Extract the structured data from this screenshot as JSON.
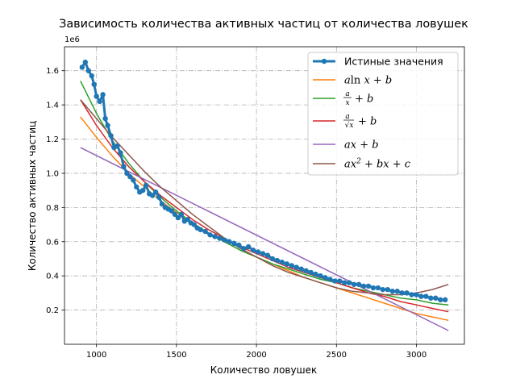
{
  "chart_data": {
    "type": "line",
    "title": "Зависимость количества активных частиц от количества ловушек",
    "xlabel": "Количество ловушек",
    "ylabel": "Количество активных частиц",
    "y_offset_label": "1e6",
    "xlim": [
      800,
      3300
    ],
    "ylim": [
      0.0,
      1.74
    ],
    "y_scale_multiplier": 1000000,
    "x_ticks": [
      1000,
      1500,
      2000,
      2500,
      3000
    ],
    "y_ticks": [
      0.2,
      0.4,
      0.6,
      0.8,
      1.0,
      1.2,
      1.4,
      1.6
    ],
    "y_tick_labels": [
      "0.2",
      "0.4",
      "0.6",
      "0.8",
      "1.0",
      "1.2",
      "1.4",
      "1.6"
    ],
    "grid": true,
    "legend_position": "top-right",
    "series": [
      {
        "name": "Истиные значения",
        "style": "line-marker",
        "color": "#1f77b4",
        "x": [
          910,
          930,
          950,
          970,
          985,
          1000,
          1020,
          1040,
          1055,
          1070,
          1090,
          1110,
          1130,
          1150,
          1170,
          1190,
          1210,
          1230,
          1250,
          1270,
          1290,
          1310,
          1330,
          1350,
          1370,
          1390,
          1410,
          1430,
          1450,
          1470,
          1490,
          1510,
          1530,
          1550,
          1570,
          1590,
          1610,
          1630,
          1650,
          1680,
          1710,
          1740,
          1770,
          1800,
          1830,
          1860,
          1890,
          1920,
          1950,
          1980,
          2010,
          2040,
          2070,
          2100,
          2130,
          2160,
          2190,
          2220,
          2250,
          2280,
          2310,
          2340,
          2370,
          2400,
          2430,
          2460,
          2490,
          2520,
          2550,
          2580,
          2610,
          2640,
          2670,
          2700,
          2730,
          2760,
          2790,
          2820,
          2850,
          2880,
          2910,
          2940,
          2970,
          3000,
          3030,
          3060,
          3090,
          3120,
          3150,
          3180
        ],
        "values": [
          1.62,
          1.65,
          1.6,
          1.57,
          1.52,
          1.45,
          1.42,
          1.46,
          1.32,
          1.28,
          1.22,
          1.15,
          1.16,
          1.12,
          1.04,
          1.0,
          0.98,
          0.96,
          0.92,
          0.89,
          0.9,
          0.93,
          0.88,
          0.87,
          0.89,
          0.86,
          0.82,
          0.8,
          0.79,
          0.78,
          0.76,
          0.74,
          0.76,
          0.72,
          0.73,
          0.71,
          0.7,
          0.68,
          0.67,
          0.66,
          0.64,
          0.63,
          0.62,
          0.61,
          0.6,
          0.59,
          0.58,
          0.56,
          0.57,
          0.55,
          0.54,
          0.53,
          0.52,
          0.5,
          0.49,
          0.48,
          0.47,
          0.46,
          0.45,
          0.44,
          0.43,
          0.42,
          0.41,
          0.4,
          0.39,
          0.38,
          0.37,
          0.37,
          0.36,
          0.36,
          0.35,
          0.35,
          0.34,
          0.34,
          0.33,
          0.33,
          0.32,
          0.32,
          0.31,
          0.31,
          0.3,
          0.3,
          0.29,
          0.29,
          0.28,
          0.28,
          0.27,
          0.27,
          0.26,
          0.26
        ]
      },
      {
        "name": "a ln x + b",
        "legend": {
          "pre": "a",
          "fn": "ln",
          "post": "x + b"
        },
        "style": "line",
        "color": "#ff7f0e",
        "x": [
          900,
          1000,
          1100,
          1200,
          1300,
          1400,
          1500,
          1600,
          1700,
          1800,
          1900,
          2000,
          2100,
          2200,
          2300,
          2400,
          2500,
          2600,
          2700,
          2800,
          2900,
          3000,
          3100,
          3200
        ],
        "values": [
          1.33,
          1.21,
          1.1,
          1.0,
          0.92,
          0.84,
          0.77,
          0.71,
          0.65,
          0.6,
          0.55,
          0.51,
          0.47,
          0.43,
          0.39,
          0.36,
          0.33,
          0.3,
          0.27,
          0.24,
          0.21,
          0.18,
          0.16,
          0.14
        ]
      },
      {
        "name": "a/x + b",
        "legend": {
          "num": "a",
          "den": "x",
          "post": "+ b"
        },
        "style": "line",
        "color": "#2ca02c",
        "x": [
          900,
          1000,
          1100,
          1200,
          1300,
          1400,
          1500,
          1600,
          1700,
          1800,
          1900,
          2000,
          2100,
          2200,
          2300,
          2400,
          2500,
          2600,
          2700,
          2800,
          2900,
          3000,
          3100,
          3200
        ],
        "values": [
          1.54,
          1.35,
          1.19,
          1.06,
          0.95,
          0.86,
          0.78,
          0.71,
          0.65,
          0.6,
          0.55,
          0.51,
          0.47,
          0.44,
          0.41,
          0.38,
          0.36,
          0.33,
          0.31,
          0.29,
          0.27,
          0.26,
          0.24,
          0.23
        ]
      },
      {
        "name": "a/√x + b",
        "legend": {
          "num": "a",
          "den": "√x",
          "post": "+ b"
        },
        "style": "line",
        "color": "#d62728",
        "x": [
          900,
          1000,
          1100,
          1200,
          1300,
          1400,
          1500,
          1600,
          1700,
          1800,
          1900,
          2000,
          2100,
          2200,
          2300,
          2400,
          2500,
          2600,
          2700,
          2800,
          2900,
          3000,
          3100,
          3200
        ],
        "values": [
          1.43,
          1.28,
          1.15,
          1.04,
          0.95,
          0.87,
          0.8,
          0.73,
          0.67,
          0.62,
          0.57,
          0.53,
          0.49,
          0.45,
          0.42,
          0.39,
          0.36,
          0.33,
          0.3,
          0.28,
          0.25,
          0.23,
          0.21,
          0.19
        ]
      },
      {
        "name": "ax + b",
        "legend": {
          "expr": "ax + b"
        },
        "style": "line",
        "color": "#9467bd",
        "x": [
          900,
          3200
        ],
        "values": [
          1.15,
          0.08
        ]
      },
      {
        "name": "ax² + bx + c",
        "legend": {
          "expr": "ax",
          "sup": "2",
          "post": " + bx + c"
        },
        "style": "line",
        "color": "#8c564b",
        "x": [
          900,
          1000,
          1100,
          1200,
          1300,
          1400,
          1500,
          1600,
          1700,
          1800,
          1900,
          2000,
          2100,
          2200,
          2300,
          2400,
          2500,
          2600,
          2700,
          2800,
          2900,
          3000,
          3100,
          3200
        ],
        "values": [
          1.43,
          1.32,
          1.21,
          1.11,
          1.01,
          0.92,
          0.84,
          0.76,
          0.69,
          0.62,
          0.56,
          0.51,
          0.46,
          0.42,
          0.39,
          0.36,
          0.33,
          0.31,
          0.3,
          0.29,
          0.29,
          0.3,
          0.32,
          0.35
        ]
      }
    ]
  }
}
